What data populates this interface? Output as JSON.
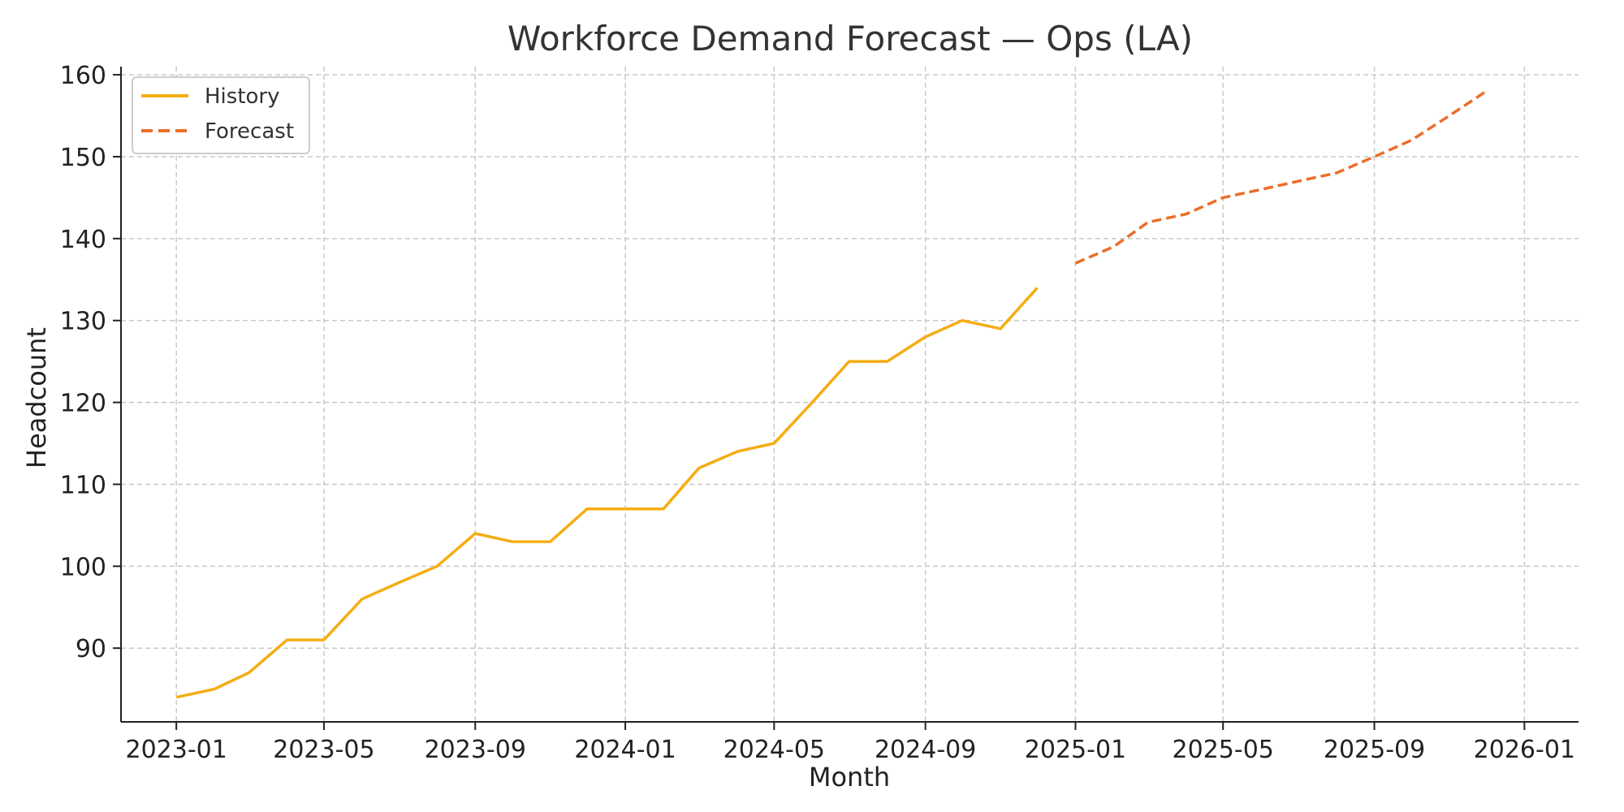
{
  "chart_data": {
    "type": "line",
    "title": "Workforce Demand Forecast — Ops (LA)",
    "xlabel": "Month",
    "ylabel": "Headcount",
    "ylim": [
      81,
      161
    ],
    "xlim": [
      "2022-11-17",
      "2026-02-14"
    ],
    "grid": true,
    "legend_position": "top-left",
    "x_ticks": [
      "2023-01",
      "2023-05",
      "2023-09",
      "2024-01",
      "2024-05",
      "2024-09",
      "2025-01",
      "2025-05",
      "2025-09",
      "2026-01"
    ],
    "y_ticks": [
      90,
      100,
      110,
      120,
      130,
      140,
      150,
      160
    ],
    "series": [
      {
        "name": "History",
        "color": "#F5AD14",
        "style": "solid",
        "x": [
          "2023-01",
          "2023-02",
          "2023-03",
          "2023-04",
          "2023-05",
          "2023-06",
          "2023-07",
          "2023-08",
          "2023-09",
          "2023-10",
          "2023-11",
          "2023-12",
          "2024-01",
          "2024-02",
          "2024-03",
          "2024-04",
          "2024-05",
          "2024-06",
          "2024-07",
          "2024-08",
          "2024-09",
          "2024-10",
          "2024-11",
          "2024-12"
        ],
        "values": [
          84,
          85,
          87,
          91,
          91,
          96,
          98,
          100,
          104,
          103,
          103,
          107,
          107,
          107,
          112,
          114,
          115,
          120,
          125,
          125,
          128,
          130,
          129,
          134
        ]
      },
      {
        "name": "Forecast",
        "color": "#EB6E2A",
        "style": "dashed",
        "x": [
          "2025-01",
          "2025-02",
          "2025-03",
          "2025-04",
          "2025-05",
          "2025-06",
          "2025-07",
          "2025-08",
          "2025-09",
          "2025-10",
          "2025-11",
          "2025-12"
        ],
        "values": [
          137,
          139,
          142,
          143,
          145,
          146,
          147,
          148,
          150,
          152,
          155,
          158
        ]
      }
    ]
  }
}
